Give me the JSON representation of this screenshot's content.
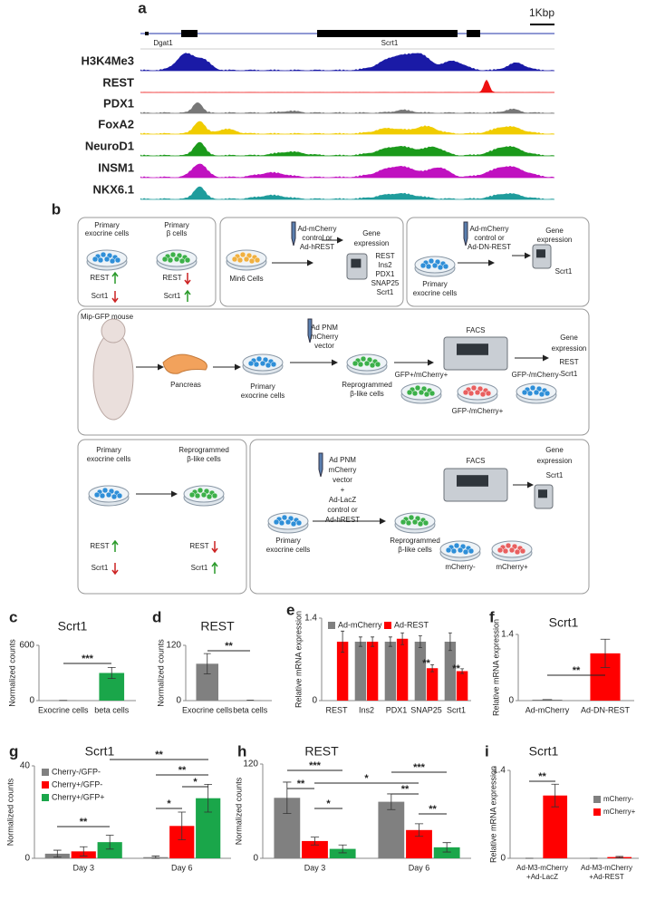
{
  "panel_a": {
    "label": "a",
    "scale": "1Kbp",
    "genes": [
      "Dgat1",
      "Scrt1"
    ],
    "tracks": [
      {
        "name": "H3K4Me3",
        "color": "#1a1aa6"
      },
      {
        "name": "REST",
        "color": "#ee1111"
      },
      {
        "name": "PDX1",
        "color": "#777777"
      },
      {
        "name": "FoxA2",
        "color": "#f0cc00"
      },
      {
        "name": "NeuroD1",
        "color": "#1b9a1b"
      },
      {
        "name": "INSM1",
        "color": "#c010c0"
      },
      {
        "name": "NKX6.1",
        "color": "#1f9c9c"
      }
    ]
  },
  "panel_b": {
    "label": "b",
    "texts": [
      "Primary",
      "exocrine cells",
      "Primary",
      "β cells",
      "REST",
      "Scrt1",
      "REST",
      "Scrt1",
      "Min6 Cells",
      "Ad-mCherry",
      "control or",
      "Ad-hREST",
      "Gene",
      "expression",
      "REST",
      "Ins2",
      "PDX1",
      "SNAP25",
      "Scrt1",
      "Ad-mCherry",
      "control or",
      "Ad-DN-REST",
      "Gene",
      "expression",
      "Scrt1",
      "Primary",
      "exocrine cells",
      "Mip-GFP mouse",
      "Pancreas",
      "Primary",
      "exocrine cells",
      "Ad PNM",
      "mCherry",
      "vector",
      "Reprogrammed",
      "β-like cells",
      "FACS",
      "GFP+/mCherry+",
      "GFP-/mCherry-",
      "GFP-/mCherry+",
      "Gene",
      "expression",
      "REST",
      "Scrt1",
      "Primary",
      "exocrine cells",
      "Reprogrammed",
      "β-like cells",
      "REST",
      "Scrt1",
      "REST",
      "Scrt1",
      "Ad PNM",
      "mCherry",
      "vector",
      "+",
      "Ad-LacZ",
      "control or",
      "Ad-hREST",
      "Primary",
      "exocrine cells",
      "Reprogrammed",
      "β-like cells",
      "FACS",
      "mCherry-",
      "mCherry+",
      "Gene",
      "expression",
      "Scrt1"
    ]
  },
  "chart_data": [
    {
      "type": "bar",
      "panel": "c",
      "title": "Scrt1",
      "y_label": "Normalized counts",
      "categories": [
        "Exocrine cells",
        "beta cells"
      ],
      "values": [
        2,
        300
      ],
      "errors": [
        0,
        60
      ],
      "colors": [
        "#808080",
        "#1aa64a"
      ],
      "ylim": [
        0,
        600
      ],
      "yticks": [
        0,
        600
      ],
      "annotations": [
        "***"
      ]
    },
    {
      "type": "bar",
      "panel": "d",
      "title": "REST",
      "y_label": "Normalized counts",
      "categories": [
        "Exocrine cells",
        "beta cells"
      ],
      "values": [
        80,
        1
      ],
      "errors": [
        22,
        0
      ],
      "colors": [
        "#808080",
        "#808080"
      ],
      "ylim": [
        0,
        120
      ],
      "yticks": [
        0,
        120
      ],
      "annotations": [
        "**"
      ]
    },
    {
      "type": "bar",
      "panel": "e",
      "y_label": "Relative mRNA expression",
      "categories": [
        "REST",
        "Ins2",
        "PDX1",
        "SNAP25",
        "Scrt1"
      ],
      "series": [
        {
          "name": "Ad-mCherry",
          "color": "#808080",
          "values": [
            null,
            1,
            1,
            1,
            1
          ],
          "errors": [
            null,
            0.08,
            0.08,
            0.1,
            0.15
          ]
        },
        {
          "name": "Ad-REST",
          "color": "#ff0000",
          "values": [
            1,
            1,
            1.05,
            0.55,
            0.5
          ],
          "errors": [
            0.18,
            0.08,
            0.1,
            0.06,
            0.04
          ]
        }
      ],
      "ylim": [
        0,
        1.4
      ],
      "yticks": [
        0,
        1.4
      ],
      "annotations": [
        "**",
        "**"
      ],
      "legend": "top"
    },
    {
      "type": "bar",
      "panel": "f",
      "title": "Scrt1",
      "y_label": "Relative mRNA expression",
      "categories": [
        "Ad-mCherry",
        "Ad-DN-REST"
      ],
      "values": [
        0.02,
        1.0
      ],
      "errors": [
        0,
        0.3
      ],
      "colors": [
        "#808080",
        "#ff0000"
      ],
      "ylim": [
        0,
        1.4
      ],
      "yticks": [
        0,
        1.4
      ],
      "annotations": [
        "**"
      ]
    },
    {
      "type": "bar",
      "panel": "g",
      "title": "Scrt1",
      "y_label": "Normalized counts",
      "categories": [
        "Day 3",
        "Day 6"
      ],
      "series": [
        {
          "name": "Cherry-/GFP-",
          "color": "#808080",
          "values": [
            2,
            0.5
          ],
          "errors": [
            1.5,
            0.5
          ]
        },
        {
          "name": "Cherry+/GFP-",
          "color": "#ff0000",
          "values": [
            3,
            14
          ],
          "errors": [
            2,
            6
          ]
        },
        {
          "name": "Cherry+/GFP+",
          "color": "#1aa64a",
          "values": [
            7,
            26
          ],
          "errors": [
            3,
            6
          ]
        }
      ],
      "ylim": [
        0,
        40
      ],
      "yticks": [
        0,
        40
      ],
      "annotations": [
        "**",
        "**",
        "*",
        "*",
        "**"
      ],
      "legend": "top-left"
    },
    {
      "type": "bar",
      "panel": "h",
      "title": "REST",
      "y_label": "Normalized counts",
      "categories": [
        "Day 3",
        "Day 6"
      ],
      "series": [
        {
          "name": "Cherry-/GFP-",
          "color": "#808080",
          "values": [
            77,
            72
          ],
          "errors": [
            20,
            10
          ]
        },
        {
          "name": "Cherry+/GFP-",
          "color": "#ff0000",
          "values": [
            22,
            36
          ],
          "errors": [
            5,
            8
          ]
        },
        {
          "name": "Cherry+/GFP+",
          "color": "#1aa64a",
          "values": [
            12,
            14
          ],
          "errors": [
            5,
            6
          ]
        }
      ],
      "ylim": [
        0,
        120
      ],
      "yticks": [
        0,
        120
      ],
      "annotations": [
        "***",
        "**",
        "*",
        "*",
        "***",
        "**",
        "**"
      ]
    },
    {
      "type": "bar",
      "panel": "i",
      "title": "Scrt1",
      "y_label": "Relative mRNA expression",
      "categories": [
        "Ad-M3-mCherry +Ad-LacZ",
        "Ad-M3-mCherry +Ad-REST"
      ],
      "series": [
        {
          "name": "mCherry-",
          "color": "#808080",
          "values": [
            0,
            0
          ],
          "errors": [
            0,
            0
          ]
        },
        {
          "name": "mCherry+",
          "color": "#ff0000",
          "values": [
            1.0,
            0.02
          ],
          "errors": [
            0.18,
            0.01
          ]
        }
      ],
      "ylim": [
        0,
        1.4
      ],
      "yticks": [
        0,
        1.4
      ],
      "annotations": [
        "**"
      ],
      "legend": "right"
    }
  ]
}
